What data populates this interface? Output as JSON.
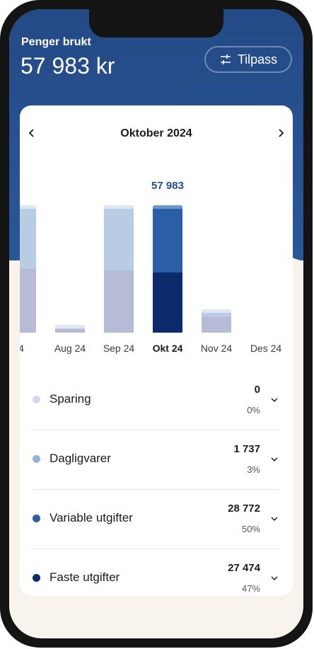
{
  "header": {
    "label": "Penger brukt",
    "amount": "57 983 kr",
    "customize_label": "Tilpass"
  },
  "month_nav": {
    "title": "Oktober 2024"
  },
  "chart_data": {
    "type": "bar",
    "categories": [
      "4",
      "Aug 24",
      "Sep 24",
      "Okt 24",
      "Nov 24",
      "Des 24"
    ],
    "selected": "Okt 24",
    "selected_value_label": "57 983",
    "totals": [
      58000,
      3500,
      58000,
      57983,
      10500,
      0
    ],
    "series": [
      {
        "values": [
          29000,
          1750,
          28500,
          27474,
          7000,
          0
        ]
      },
      {
        "values": [
          29000,
          1750,
          29500,
          30509,
          3500,
          0
        ]
      }
    ],
    "ylim": [
      0,
      58000
    ]
  },
  "categories": [
    {
      "name": "Sparing",
      "amount": "0",
      "percent": "0%",
      "color": "#d4d7ea"
    },
    {
      "name": "Dagligvarer",
      "amount": "1 737",
      "percent": "3%",
      "color": "#93b4d4"
    },
    {
      "name": "Variable utgifter",
      "amount": "28 772",
      "percent": "50%",
      "color": "#2a5fa8"
    },
    {
      "name": "Faste utgifter",
      "amount": "27 474",
      "percent": "47%",
      "color": "#0c2a6b"
    }
  ],
  "colors": {
    "header_bg": "#234a86",
    "accent": "#22508e"
  }
}
